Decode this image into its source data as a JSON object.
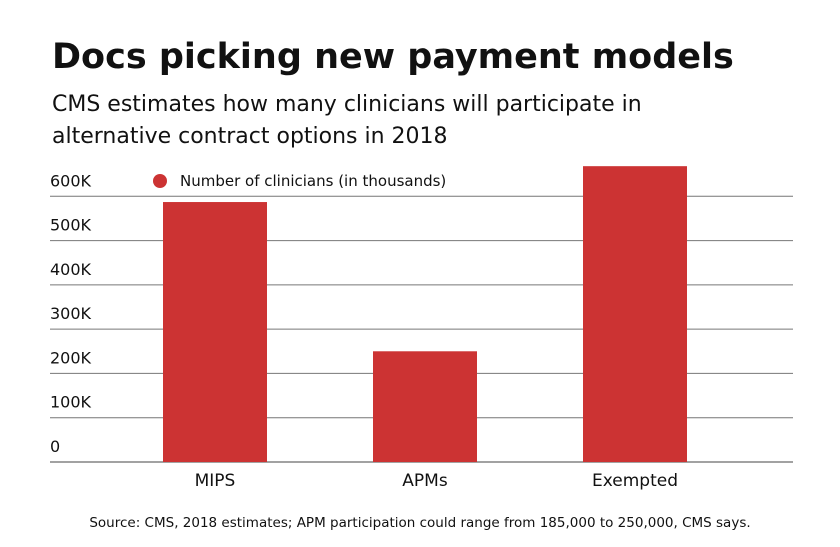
{
  "chart_data": {
    "type": "bar",
    "title": "Docs picking new payment models",
    "subtitle": [
      "CMS estimates how many clinicians will participate in",
      "alternative contract options in 2018"
    ],
    "categories": [
      "MIPS",
      "APMs",
      "Exempted"
    ],
    "series": [
      {
        "name": "Number of clinicians (in thousands)",
        "color": "#cc3333",
        "values": [
          587000,
          250000,
          668000
        ]
      }
    ],
    "ylim": [
      0,
      700000
    ],
    "yticks": [
      {
        "value": 0,
        "label": "0"
      },
      {
        "value": 100000,
        "label": "100K"
      },
      {
        "value": 200000,
        "label": "200K"
      },
      {
        "value": 300000,
        "label": "300K"
      },
      {
        "value": 400000,
        "label": "400K"
      },
      {
        "value": 500000,
        "label": "500K"
      },
      {
        "value": 600000,
        "label": "600K"
      }
    ],
    "grid": true,
    "legend": "top-left",
    "source": "Source: CMS, 2018 estimates; APM participation could range from 185,000 to 250,000, CMS says."
  }
}
